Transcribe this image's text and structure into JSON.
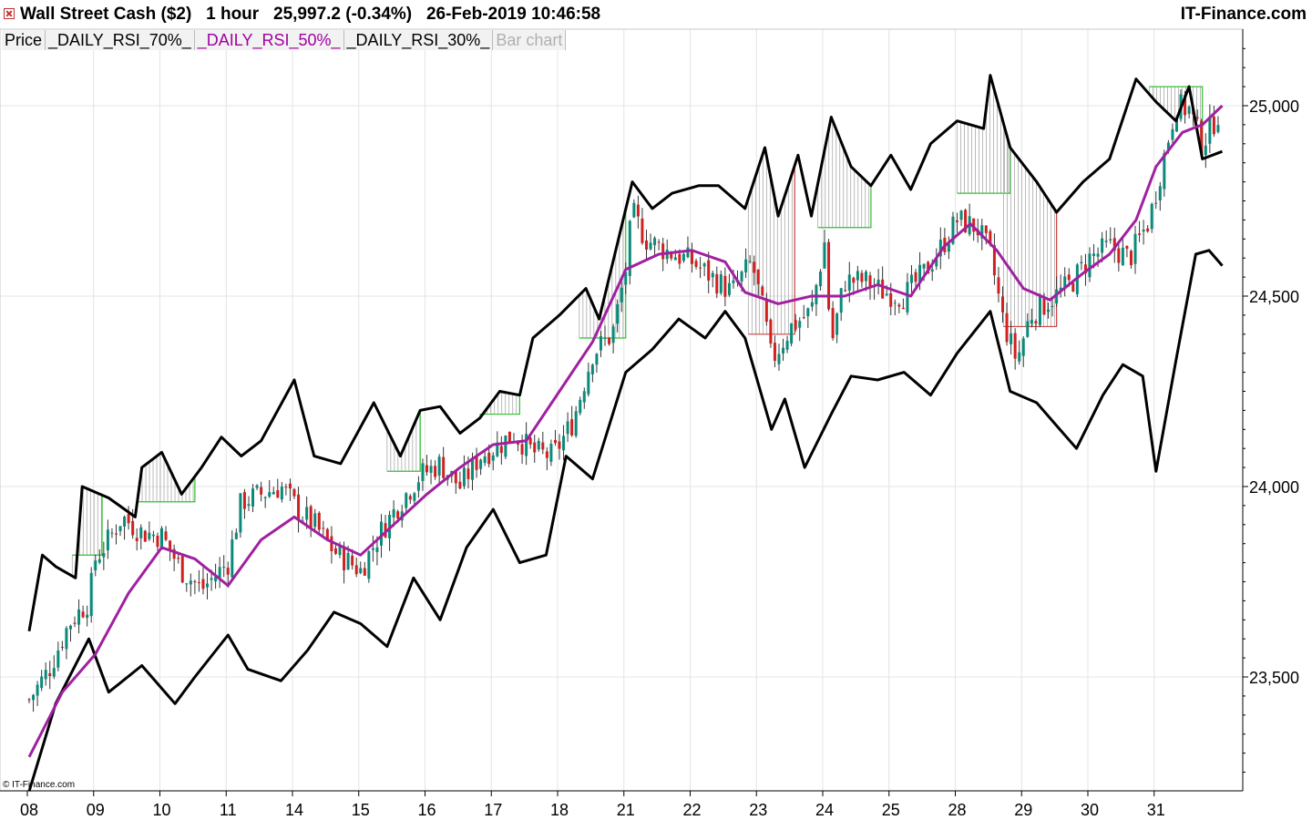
{
  "header": {
    "title": "Wall Street Cash ($2)   1 hour   25,997.2 (-0.34%)   26-Feb-2019 10:46:58",
    "brand": "IT-Finance.com"
  },
  "legend": [
    "Price",
    "_DAILY_RSI_70%_",
    "_DAILY_RSI_50%_",
    "_DAILY_RSI_30%_",
    "Bar chart"
  ],
  "copyright": "© IT-Finance.com",
  "colors": {
    "up": "#0a8a7a",
    "down": "#d02020",
    "ma": "#a020a0",
    "band": "#000000",
    "grid": "#e4e4e4",
    "green_box": "#30c030",
    "red_box": "#d04040"
  },
  "icons": [
    "close-icon"
  ],
  "chart_data": {
    "type": "candlestick",
    "title": "",
    "x": [
      "08",
      "09",
      "10",
      "11",
      "14",
      "15",
      "16",
      "17",
      "18",
      "21",
      "22",
      "23",
      "24",
      "25",
      "28",
      "29",
      "30",
      "31"
    ],
    "ylim": [
      23200,
      25200
    ],
    "yticks": [
      25000,
      24500,
      24000,
      23500
    ],
    "ytick_labels": [
      "25,000",
      "24,500",
      "24,000",
      "23,500"
    ],
    "grid": true,
    "price": [
      [
        0,
        23440
      ],
      [
        0.3,
        23520
      ],
      [
        0.6,
        23640
      ],
      [
        0.9,
        23700
      ],
      [
        1.0,
        23810
      ],
      [
        1.2,
        23860
      ],
      [
        1.4,
        23920
      ],
      [
        1.7,
        23880
      ],
      [
        2.0,
        23870
      ],
      [
        2.3,
        23780
      ],
      [
        2.6,
        23730
      ],
      [
        3.0,
        23800
      ],
      [
        3.2,
        23960
      ],
      [
        3.5,
        23980
      ],
      [
        3.8,
        24000
      ],
      [
        4.1,
        23930
      ],
      [
        4.3,
        23900
      ],
      [
        4.6,
        23830
      ],
      [
        5.0,
        23780
      ],
      [
        5.3,
        23880
      ],
      [
        5.6,
        23960
      ],
      [
        5.9,
        24030
      ],
      [
        6.2,
        24060
      ],
      [
        6.5,
        24000
      ],
      [
        6.8,
        24080
      ],
      [
        7.1,
        24110
      ],
      [
        7.3,
        24140
      ],
      [
        7.6,
        24090
      ],
      [
        7.9,
        24080
      ],
      [
        8.2,
        24170
      ],
      [
        8.5,
        24350
      ],
      [
        8.8,
        24400
      ],
      [
        9.0,
        24570
      ],
      [
        9.1,
        24720
      ],
      [
        9.3,
        24650
      ],
      [
        9.6,
        24620
      ],
      [
        10.0,
        24590
      ],
      [
        10.3,
        24550
      ],
      [
        10.6,
        24510
      ],
      [
        10.9,
        24590
      ],
      [
        11.1,
        24440
      ],
      [
        11.2,
        24330
      ],
      [
        11.5,
        24420
      ],
      [
        11.8,
        24460
      ],
      [
        12.0,
        24640
      ],
      [
        12.1,
        24370
      ],
      [
        12.3,
        24540
      ],
      [
        12.6,
        24540
      ],
      [
        12.9,
        24510
      ],
      [
        13.2,
        24500
      ],
      [
        13.5,
        24560
      ],
      [
        13.8,
        24640
      ],
      [
        14.0,
        24700
      ],
      [
        14.3,
        24680
      ],
      [
        14.5,
        24610
      ],
      [
        14.7,
        24430
      ],
      [
        14.9,
        24330
      ],
      [
        15.1,
        24450
      ],
      [
        15.4,
        24490
      ],
      [
        15.7,
        24530
      ],
      [
        16.0,
        24600
      ],
      [
        16.3,
        24630
      ],
      [
        16.6,
        24600
      ],
      [
        16.9,
        24700
      ],
      [
        17.1,
        24850
      ],
      [
        17.3,
        25000
      ],
      [
        17.5,
        24990
      ],
      [
        17.7,
        24900
      ],
      [
        17.85,
        24950
      ],
      [
        18.0,
        25000
      ]
    ],
    "ma": [
      [
        0,
        23290
      ],
      [
        0.5,
        23460
      ],
      [
        1.0,
        23560
      ],
      [
        1.5,
        23720
      ],
      [
        2.0,
        23840
      ],
      [
        2.5,
        23810
      ],
      [
        3.0,
        23740
      ],
      [
        3.5,
        23860
      ],
      [
        4.0,
        23920
      ],
      [
        4.5,
        23860
      ],
      [
        5.0,
        23820
      ],
      [
        5.5,
        23900
      ],
      [
        6.0,
        23980
      ],
      [
        6.5,
        24050
      ],
      [
        7.0,
        24110
      ],
      [
        7.5,
        24120
      ],
      [
        8.0,
        24250
      ],
      [
        8.5,
        24380
      ],
      [
        9.0,
        24570
      ],
      [
        9.5,
        24610
      ],
      [
        10.0,
        24620
      ],
      [
        10.5,
        24590
      ],
      [
        10.8,
        24510
      ],
      [
        11.3,
        24480
      ],
      [
        11.8,
        24500
      ],
      [
        12.3,
        24500
      ],
      [
        12.8,
        24530
      ],
      [
        13.3,
        24500
      ],
      [
        13.8,
        24630
      ],
      [
        14.2,
        24690
      ],
      [
        14.6,
        24620
      ],
      [
        15.0,
        24520
      ],
      [
        15.4,
        24490
      ],
      [
        15.9,
        24560
      ],
      [
        16.3,
        24610
      ],
      [
        16.7,
        24700
      ],
      [
        17.0,
        24840
      ],
      [
        17.4,
        24930
      ],
      [
        17.7,
        24950
      ],
      [
        18.0,
        25000
      ]
    ],
    "band_upper": [
      [
        0,
        23620
      ],
      [
        0.2,
        23820
      ],
      [
        0.4,
        23790
      ],
      [
        0.7,
        23760
      ],
      [
        0.8,
        24000
      ],
      [
        1.2,
        23970
      ],
      [
        1.6,
        23920
      ],
      [
        1.7,
        24050
      ],
      [
        2.0,
        24090
      ],
      [
        2.3,
        23980
      ],
      [
        2.6,
        24050
      ],
      [
        2.9,
        24130
      ],
      [
        3.2,
        24080
      ],
      [
        3.5,
        24120
      ],
      [
        4.0,
        24280
      ],
      [
        4.3,
        24080
      ],
      [
        4.7,
        24060
      ],
      [
        5.2,
        24220
      ],
      [
        5.6,
        24080
      ],
      [
        5.9,
        24200
      ],
      [
        6.2,
        24210
      ],
      [
        6.5,
        24140
      ],
      [
        6.8,
        24180
      ],
      [
        7.1,
        24250
      ],
      [
        7.4,
        24240
      ],
      [
        7.6,
        24390
      ],
      [
        8.0,
        24450
      ],
      [
        8.4,
        24520
      ],
      [
        8.6,
        24440
      ],
      [
        9.1,
        24800
      ],
      [
        9.4,
        24730
      ],
      [
        9.7,
        24770
      ],
      [
        10.1,
        24790
      ],
      [
        10.4,
        24790
      ],
      [
        10.8,
        24730
      ],
      [
        11.1,
        24890
      ],
      [
        11.3,
        24710
      ],
      [
        11.6,
        24870
      ],
      [
        11.8,
        24710
      ],
      [
        12.1,
        24970
      ],
      [
        12.4,
        24840
      ],
      [
        12.7,
        24790
      ],
      [
        13.0,
        24870
      ],
      [
        13.3,
        24780
      ],
      [
        13.6,
        24900
      ],
      [
        14.0,
        24960
      ],
      [
        14.4,
        24940
      ],
      [
        14.5,
        25080
      ],
      [
        14.8,
        24890
      ],
      [
        15.2,
        24800
      ],
      [
        15.5,
        24720
      ],
      [
        15.9,
        24800
      ],
      [
        16.3,
        24860
      ],
      [
        16.7,
        25070
      ],
      [
        17.0,
        25010
      ],
      [
        17.3,
        24960
      ],
      [
        17.5,
        25050
      ],
      [
        17.7,
        24860
      ],
      [
        18.0,
        24880
      ]
    ],
    "band_lower": [
      [
        0,
        23200
      ],
      [
        0.4,
        23430
      ],
      [
        0.9,
        23600
      ],
      [
        1.2,
        23460
      ],
      [
        1.7,
        23530
      ],
      [
        2.2,
        23430
      ],
      [
        2.5,
        23500
      ],
      [
        3.0,
        23610
      ],
      [
        3.3,
        23520
      ],
      [
        3.8,
        23490
      ],
      [
        4.2,
        23570
      ],
      [
        4.6,
        23670
      ],
      [
        5.0,
        23640
      ],
      [
        5.4,
        23580
      ],
      [
        5.8,
        23760
      ],
      [
        6.2,
        23650
      ],
      [
        6.6,
        23840
      ],
      [
        7.0,
        23940
      ],
      [
        7.4,
        23800
      ],
      [
        7.8,
        23820
      ],
      [
        8.1,
        24080
      ],
      [
        8.5,
        24020
      ],
      [
        9.0,
        24300
      ],
      [
        9.4,
        24360
      ],
      [
        9.8,
        24440
      ],
      [
        10.2,
        24390
      ],
      [
        10.5,
        24460
      ],
      [
        10.8,
        24390
      ],
      [
        11.2,
        24150
      ],
      [
        11.4,
        24230
      ],
      [
        11.7,
        24050
      ],
      [
        12.1,
        24190
      ],
      [
        12.4,
        24290
      ],
      [
        12.8,
        24280
      ],
      [
        13.2,
        24300
      ],
      [
        13.6,
        24240
      ],
      [
        14.0,
        24350
      ],
      [
        14.5,
        24460
      ],
      [
        14.8,
        24250
      ],
      [
        15.2,
        24220
      ],
      [
        15.5,
        24160
      ],
      [
        15.8,
        24100
      ],
      [
        16.2,
        24240
      ],
      [
        16.5,
        24320
      ],
      [
        16.8,
        24290
      ],
      [
        17.0,
        24040
      ],
      [
        17.3,
        24330
      ],
      [
        17.6,
        24610
      ],
      [
        17.8,
        24620
      ],
      [
        18.0,
        24580
      ]
    ]
  }
}
